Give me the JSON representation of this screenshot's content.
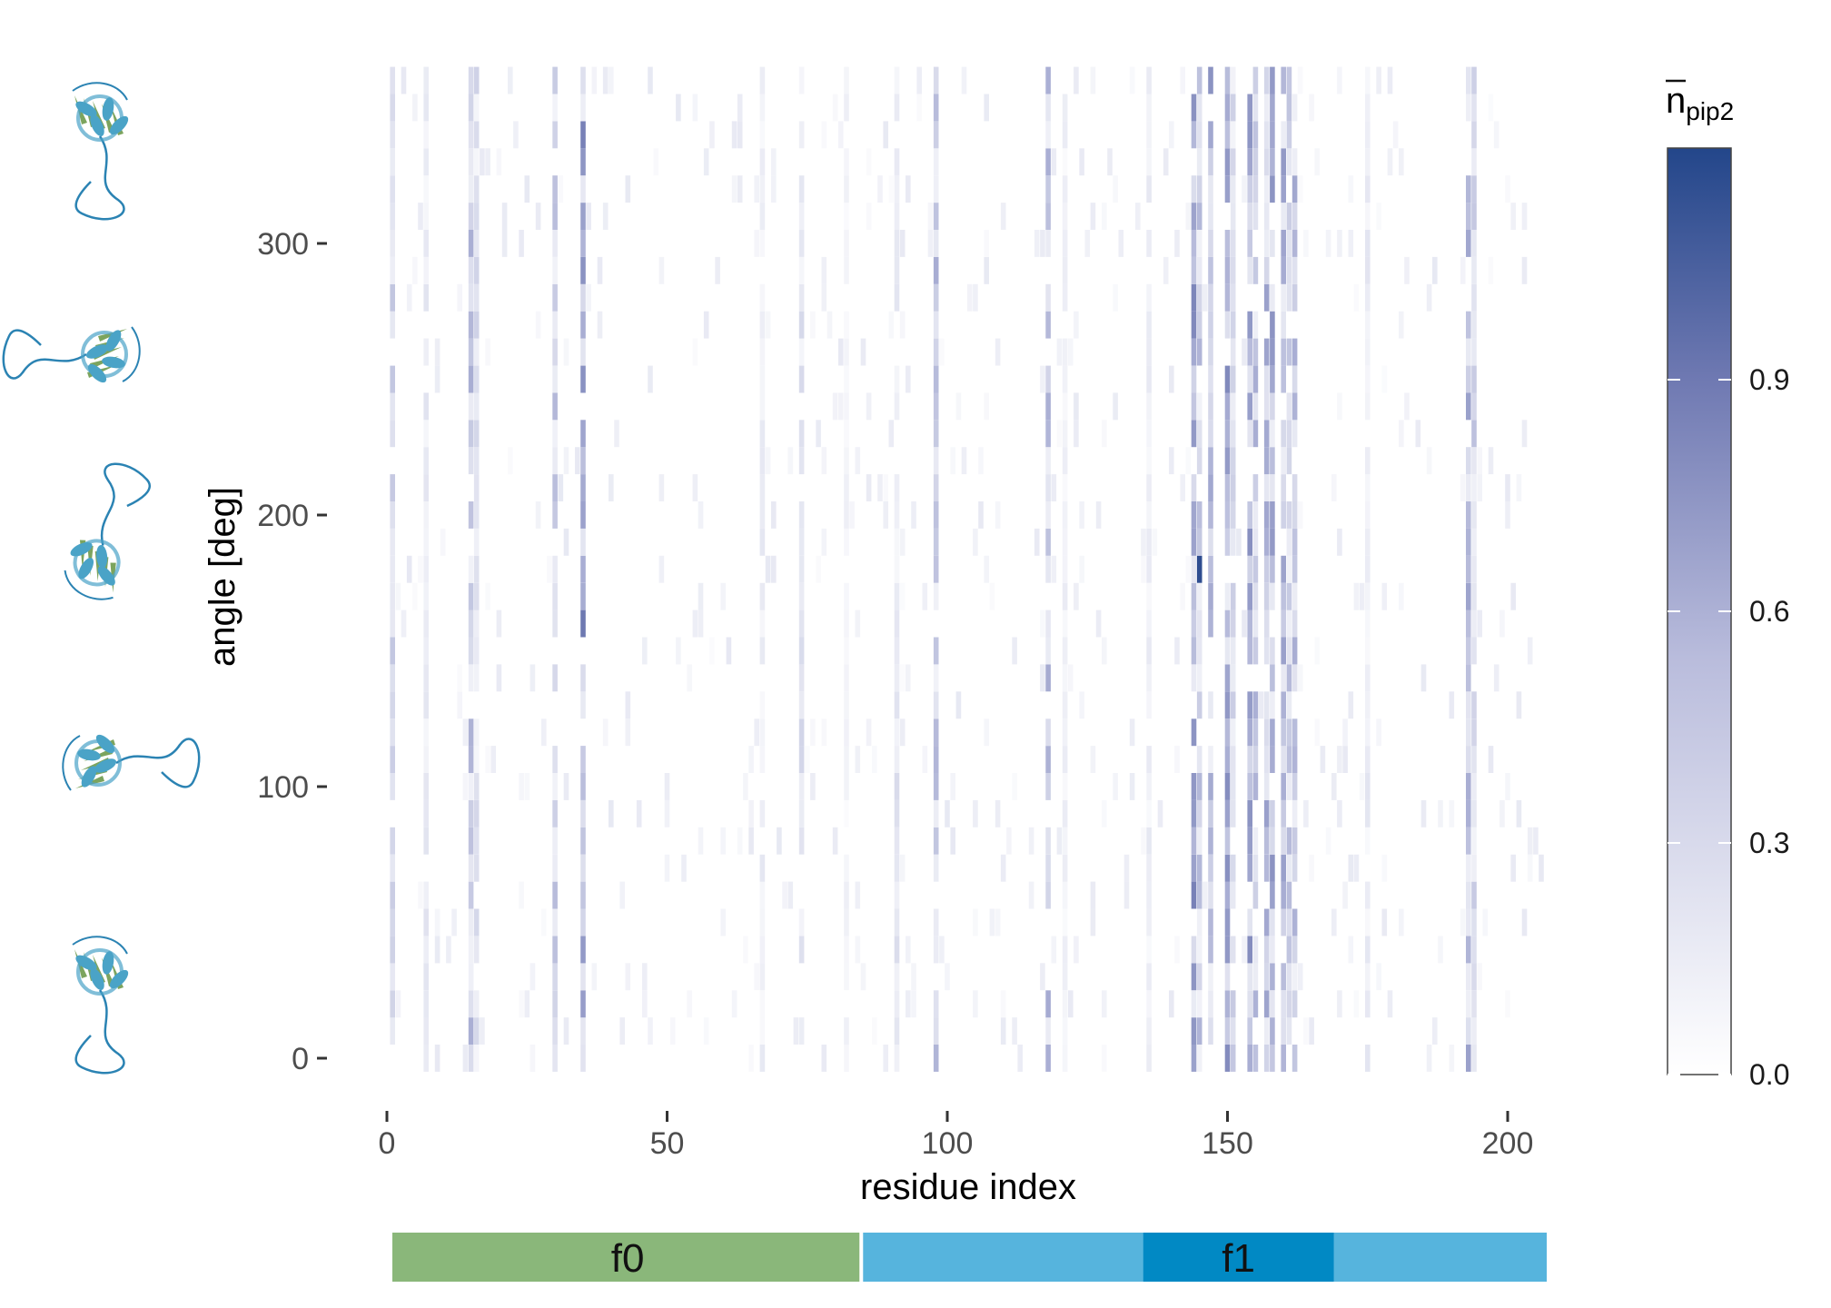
{
  "chart_data": {
    "type": "heatmap",
    "xlabel": "residue index",
    "ylabel": "angle [deg]",
    "xlim": [
      -2,
      208
    ],
    "ylim": [
      -10,
      360
    ],
    "x_ticks": [
      "0",
      "50",
      "100",
      "150",
      "200"
    ],
    "y_ticks": [
      "0",
      "100",
      "200",
      "300"
    ],
    "x_tick_values": [
      0,
      50,
      100,
      150,
      200
    ],
    "y_tick_values": [
      0,
      100,
      200,
      300
    ],
    "grid": false,
    "residue_range": [
      1,
      206
    ],
    "angle_range": [
      0,
      350
    ],
    "angle_step": 10,
    "colorscale": {
      "min_color": "#f7f7fb",
      "mid_color": "#7b85ba",
      "max_color": "#23468a",
      "range": [
        0.0,
        1.2
      ],
      "ticks": [
        "0.0",
        "0.3",
        "0.6",
        "0.9"
      ],
      "tick_values": [
        0.0,
        0.3,
        0.6,
        0.9
      ]
    },
    "legend_title": "n",
    "legend_title_sub": "pip2",
    "legend_placement": "right",
    "highlight_columns": [
      {
        "x": 1,
        "level": 0.35
      },
      {
        "x": 7,
        "level": 0.22
      },
      {
        "x": 15,
        "level": 0.42
      },
      {
        "x": 16,
        "level": 0.3
      },
      {
        "x": 30,
        "level": 0.38
      },
      {
        "x": 35,
        "level": 0.55
      },
      {
        "x": 67,
        "level": 0.18
      },
      {
        "x": 74,
        "level": 0.28
      },
      {
        "x": 82,
        "level": 0.12
      },
      {
        "x": 91,
        "level": 0.25
      },
      {
        "x": 98,
        "level": 0.4
      },
      {
        "x": 118,
        "level": 0.45
      },
      {
        "x": 121,
        "level": 0.15
      },
      {
        "x": 136,
        "level": 0.18
      },
      {
        "x": 144,
        "level": 0.62
      },
      {
        "x": 145,
        "level": 0.4
      },
      {
        "x": 147,
        "level": 0.45
      },
      {
        "x": 150,
        "level": 0.58
      },
      {
        "x": 151,
        "level": 0.35
      },
      {
        "x": 154,
        "level": 0.6
      },
      {
        "x": 155,
        "level": 0.42
      },
      {
        "x": 157,
        "level": 0.48
      },
      {
        "x": 158,
        "level": 0.55
      },
      {
        "x": 160,
        "level": 0.52
      },
      {
        "x": 161,
        "level": 0.4
      },
      {
        "x": 162,
        "level": 0.45
      },
      {
        "x": 175,
        "level": 0.2
      },
      {
        "x": 193,
        "level": 0.48
      },
      {
        "x": 194,
        "level": 0.35
      }
    ],
    "peaks": [
      {
        "x": 145,
        "y": 180,
        "value": 1.15
      },
      {
        "x": 35,
        "y": 160,
        "value": 0.85
      },
      {
        "x": 35,
        "y": 340,
        "value": 0.8
      },
      {
        "x": 150,
        "y": 250,
        "value": 0.75
      },
      {
        "x": 147,
        "y": 360,
        "value": 0.7
      },
      {
        "x": 154,
        "y": 130,
        "value": 0.65
      },
      {
        "x": 144,
        "y": 70,
        "value": 0.62
      },
      {
        "x": 158,
        "y": 250,
        "value": 0.58
      },
      {
        "x": 98,
        "y": 290,
        "value": 0.55
      },
      {
        "x": 160,
        "y": 60,
        "value": 0.55
      }
    ]
  },
  "domains": [
    {
      "label": "f0",
      "start": 0,
      "end": 84,
      "color": "#8ab77a"
    },
    {
      "label": "f1",
      "start": 84,
      "end": 206,
      "color": "#56b4dd"
    },
    {
      "label": "",
      "start": 134,
      "end": 168,
      "color": "#0189c4"
    }
  ],
  "structure_thumbnails": {
    "count": 5,
    "colors": {
      "helix": "#4aa3c7",
      "sheet": "#6e9a4d",
      "loop": "#2b83b3"
    }
  }
}
